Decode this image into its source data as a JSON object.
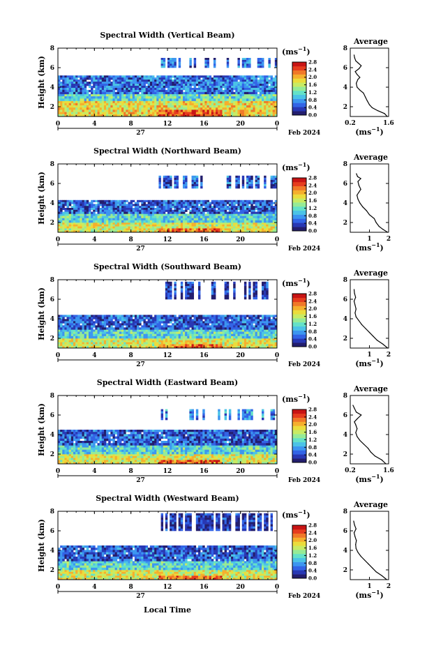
{
  "page": {
    "xlabel": "Local Time",
    "date_label": "Feb 2024",
    "day_label": "27",
    "ylabel": "Height (km)",
    "unit_label": "(ms",
    "unit_exp": "−1",
    "unit_close": ")",
    "avg_title": "Average"
  },
  "colors": {
    "scale": [
      "#231e6e",
      "#2838b4",
      "#3264e6",
      "#3c96f0",
      "#4bc3e6",
      "#64e1c8",
      "#96eb96",
      "#c8eb64",
      "#ebdc3c",
      "#f5af2d",
      "#f07828",
      "#e63c1e",
      "#c81414"
    ],
    "background": "#ffffff",
    "axis": "#000000"
  },
  "chart_data": [
    {
      "type": "heatmap",
      "title": "Spectral Width (Vertical Beam)",
      "xticks": [
        "0",
        "4",
        "8",
        "12",
        "16",
        "20",
        "0"
      ],
      "yticks": [
        "2",
        "4",
        "6",
        "8"
      ],
      "xlim": [
        0,
        24
      ],
      "ylim": [
        1,
        8
      ],
      "colorbar_ticks": [
        "2.8",
        "2.4",
        "2.0",
        "1.6",
        "1.2",
        "0.8",
        "0.4",
        "0.0"
      ],
      "colorbar_range": [
        0,
        2.8
      ],
      "layers": [
        {
          "from_km": 1.0,
          "to_km": 2.6,
          "mean_width_ms": 1.8
        },
        {
          "from_km": 2.6,
          "to_km": 3.3,
          "mean_width_ms": 1.2
        },
        {
          "from_km": 3.3,
          "to_km": 5.2,
          "mean_width_ms": 0.6
        },
        {
          "from_km": 6.0,
          "to_km": 7.0,
          "mean_width_ms": 0.6
        }
      ],
      "profile": {
        "title": "Average",
        "xticks": [
          "0.2",
          "1.6"
        ],
        "xlim": [
          0.2,
          1.6
        ],
        "yticks": [
          "2",
          "4",
          "6",
          "8"
        ],
        "ylim": [
          1,
          8
        ],
        "points": [
          [
            1.55,
            1.0
          ],
          [
            1.45,
            1.3
          ],
          [
            1.2,
            1.6
          ],
          [
            1.0,
            1.9
          ],
          [
            0.9,
            2.2
          ],
          [
            0.82,
            2.6
          ],
          [
            0.75,
            3.0
          ],
          [
            0.68,
            3.4
          ],
          [
            0.55,
            3.7
          ],
          [
            0.45,
            4.0
          ],
          [
            0.42,
            4.4
          ],
          [
            0.48,
            4.8
          ],
          [
            0.55,
            5.0
          ],
          [
            0.45,
            5.3
          ],
          [
            0.38,
            5.6
          ],
          [
            0.52,
            5.9
          ],
          [
            0.6,
            6.2
          ],
          [
            0.48,
            6.5
          ],
          [
            0.4,
            6.7
          ],
          [
            0.36,
            7.0
          ],
          [
            0.34,
            7.3
          ]
        ]
      }
    },
    {
      "type": "heatmap",
      "title": "Spectral Width (Northward Beam)",
      "xticks": [
        "0",
        "4",
        "8",
        "12",
        "16",
        "20",
        "0"
      ],
      "yticks": [
        "2",
        "4",
        "6",
        "8"
      ],
      "xlim": [
        0,
        24
      ],
      "ylim": [
        1,
        8
      ],
      "colorbar_ticks": [
        "2.8",
        "2.4",
        "2.0",
        "1.6",
        "1.2",
        "0.8",
        "0.4",
        "0.0"
      ],
      "colorbar_range": [
        0,
        2.8
      ],
      "layers": [
        {
          "from_km": 1.0,
          "to_km": 2.0,
          "mean_width_ms": 1.7
        },
        {
          "from_km": 2.0,
          "to_km": 2.9,
          "mean_width_ms": 1.1
        },
        {
          "from_km": 2.9,
          "to_km": 4.3,
          "mean_width_ms": 0.5
        },
        {
          "from_km": 5.5,
          "to_km": 6.8,
          "mean_width_ms": 0.5
        }
      ],
      "profile": {
        "title": "Average",
        "xticks": [
          "1",
          "2"
        ],
        "xlim": [
          0,
          2
        ],
        "yticks": [
          "2",
          "4",
          "6",
          "8"
        ],
        "ylim": [
          1,
          8
        ],
        "points": [
          [
            1.95,
            1.0
          ],
          [
            1.7,
            1.3
          ],
          [
            1.5,
            1.6
          ],
          [
            1.35,
            2.0
          ],
          [
            1.25,
            2.4
          ],
          [
            1.0,
            2.8
          ],
          [
            0.85,
            3.2
          ],
          [
            0.65,
            3.6
          ],
          [
            0.5,
            4.0
          ],
          [
            0.4,
            4.4
          ],
          [
            0.35,
            4.8
          ],
          [
            0.45,
            5.1
          ],
          [
            0.55,
            5.4
          ],
          [
            0.45,
            5.8
          ],
          [
            0.4,
            6.2
          ],
          [
            0.55,
            6.5
          ],
          [
            0.38,
            6.7
          ],
          [
            0.32,
            7.0
          ]
        ]
      }
    },
    {
      "type": "heatmap",
      "title": "Spectral Width (Southward Beam)",
      "xticks": [
        "0",
        "4",
        "8",
        "12",
        "16",
        "20",
        "0"
      ],
      "yticks": [
        "2",
        "4",
        "6",
        "8"
      ],
      "xlim": [
        0,
        24
      ],
      "ylim": [
        1,
        8
      ],
      "colorbar_ticks": [
        "2.8",
        "2.4",
        "2.0",
        "1.6",
        "1.2",
        "0.8",
        "0.4",
        "0.0"
      ],
      "colorbar_range": [
        0,
        2.8
      ],
      "layers": [
        {
          "from_km": 1.0,
          "to_km": 2.0,
          "mean_width_ms": 1.7
        },
        {
          "from_km": 2.0,
          "to_km": 2.9,
          "mean_width_ms": 1.1
        },
        {
          "from_km": 2.9,
          "to_km": 4.4,
          "mean_width_ms": 0.5
        },
        {
          "from_km": 6.0,
          "to_km": 7.8,
          "mean_width_ms": 0.3
        }
      ],
      "profile": {
        "title": "Average",
        "xticks": [
          "1",
          "2"
        ],
        "xlim": [
          0,
          2
        ],
        "yticks": [
          "2",
          "4",
          "6",
          "8"
        ],
        "ylim": [
          1,
          8
        ],
        "points": [
          [
            1.95,
            1.0
          ],
          [
            1.7,
            1.4
          ],
          [
            1.4,
            1.8
          ],
          [
            1.2,
            2.2
          ],
          [
            1.0,
            2.6
          ],
          [
            0.8,
            3.0
          ],
          [
            0.6,
            3.4
          ],
          [
            0.45,
            3.8
          ],
          [
            0.3,
            4.2
          ],
          [
            0.25,
            4.6
          ],
          [
            0.3,
            5.0
          ],
          [
            0.25,
            5.4
          ],
          [
            0.2,
            5.8
          ],
          [
            0.28,
            6.2
          ],
          [
            0.22,
            6.6
          ],
          [
            0.2,
            7.0
          ]
        ]
      }
    },
    {
      "type": "heatmap",
      "title": "Spectral Width (Eastward Beam)",
      "xticks": [
        "0",
        "4",
        "8",
        "12",
        "16",
        "20",
        "0"
      ],
      "yticks": [
        "2",
        "4",
        "6",
        "8"
      ],
      "xlim": [
        0,
        24
      ],
      "ylim": [
        1,
        8
      ],
      "colorbar_ticks": [
        "2.8",
        "2.4",
        "2.0",
        "1.6",
        "1.2",
        "0.8",
        "0.4",
        "0.0"
      ],
      "colorbar_range": [
        0,
        2.8
      ],
      "layers": [
        {
          "from_km": 1.0,
          "to_km": 2.0,
          "mean_width_ms": 1.7
        },
        {
          "from_km": 2.0,
          "to_km": 2.9,
          "mean_width_ms": 1.1
        },
        {
          "from_km": 2.9,
          "to_km": 4.5,
          "mean_width_ms": 0.5
        },
        {
          "from_km": 5.5,
          "to_km": 6.6,
          "mean_width_ms": 0.7
        }
      ],
      "profile": {
        "title": "Average",
        "xticks": [
          "0.2",
          "1.6"
        ],
        "xlim": [
          0.2,
          1.6
        ],
        "yticks": [
          "2",
          "4",
          "6",
          "8"
        ],
        "ylim": [
          1,
          8
        ],
        "points": [
          [
            1.5,
            1.0
          ],
          [
            1.35,
            1.4
          ],
          [
            1.1,
            1.8
          ],
          [
            0.95,
            2.2
          ],
          [
            0.85,
            2.6
          ],
          [
            0.7,
            3.0
          ],
          [
            0.55,
            3.4
          ],
          [
            0.45,
            3.8
          ],
          [
            0.4,
            4.2
          ],
          [
            0.45,
            4.6
          ],
          [
            0.4,
            5.0
          ],
          [
            0.35,
            5.3
          ],
          [
            0.45,
            5.6
          ],
          [
            0.6,
            6.0
          ],
          [
            0.42,
            6.3
          ],
          [
            0.35,
            6.7
          ],
          [
            0.3,
            7.0
          ]
        ]
      }
    },
    {
      "type": "heatmap",
      "title": "Spectral Width (Westward Beam)",
      "xticks": [
        "0",
        "4",
        "8",
        "12",
        "16",
        "20",
        "0"
      ],
      "yticks": [
        "2",
        "4",
        "6",
        "8"
      ],
      "xlim": [
        0,
        24
      ],
      "ylim": [
        1,
        8
      ],
      "colorbar_ticks": [
        "2.8",
        "2.4",
        "2.0",
        "1.6",
        "1.2",
        "0.8",
        "0.4",
        "0.0"
      ],
      "colorbar_range": [
        0,
        2.8
      ],
      "layers": [
        {
          "from_km": 1.0,
          "to_km": 2.0,
          "mean_width_ms": 1.7
        },
        {
          "from_km": 2.0,
          "to_km": 2.9,
          "mean_width_ms": 1.1
        },
        {
          "from_km": 2.9,
          "to_km": 4.5,
          "mean_width_ms": 0.5
        },
        {
          "from_km": 6.0,
          "to_km": 7.8,
          "mean_width_ms": 0.3
        }
      ],
      "profile": {
        "title": "Average",
        "xticks": [
          "1",
          "2"
        ],
        "xlim": [
          0,
          2
        ],
        "yticks": [
          "2",
          "4",
          "6",
          "8"
        ],
        "ylim": [
          1,
          8
        ],
        "points": [
          [
            1.9,
            1.0
          ],
          [
            1.65,
            1.4
          ],
          [
            1.35,
            1.8
          ],
          [
            1.15,
            2.2
          ],
          [
            0.95,
            2.6
          ],
          [
            0.75,
            3.0
          ],
          [
            0.55,
            3.4
          ],
          [
            0.4,
            3.8
          ],
          [
            0.3,
            4.2
          ],
          [
            0.28,
            4.6
          ],
          [
            0.32,
            5.0
          ],
          [
            0.25,
            5.4
          ],
          [
            0.2,
            5.8
          ],
          [
            0.3,
            6.2
          ],
          [
            0.22,
            6.6
          ],
          [
            0.18,
            7.0
          ]
        ]
      }
    }
  ]
}
